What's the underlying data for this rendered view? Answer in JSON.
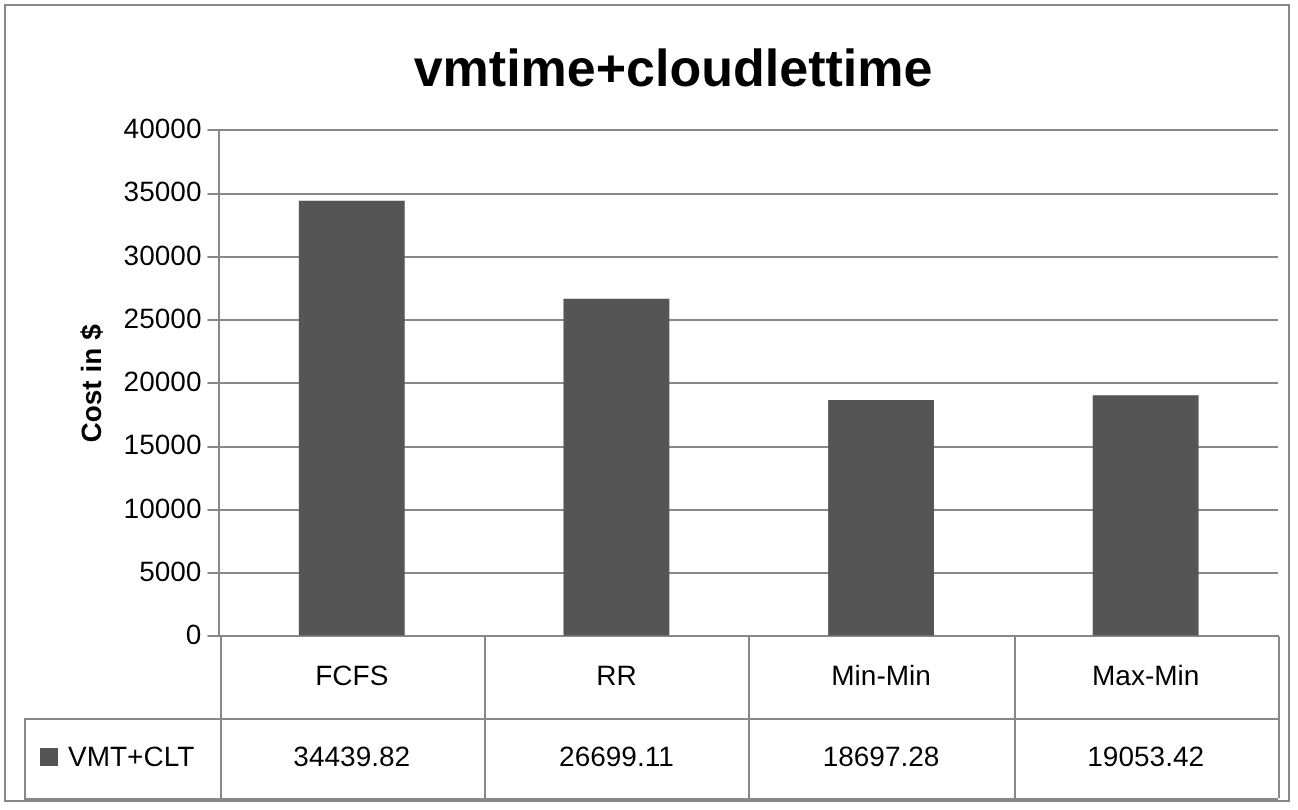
{
  "chart_data": {
    "type": "bar",
    "title": "vmtime+cloudlettime",
    "ylabel": "Cost in $",
    "categories": [
      "FCFS",
      "RR",
      "Min-Min",
      "Max-Min"
    ],
    "series": [
      {
        "name": "VMT+CLT",
        "color": "#555555",
        "values": [
          34439.82,
          26699.11,
          18697.28,
          19053.42
        ]
      }
    ],
    "ylim": [
      0,
      40000
    ],
    "yticks": [
      0,
      5000,
      10000,
      15000,
      20000,
      25000,
      30000,
      35000,
      40000
    ],
    "grid": "y",
    "legend": "bottom",
    "data_labels": true
  }
}
